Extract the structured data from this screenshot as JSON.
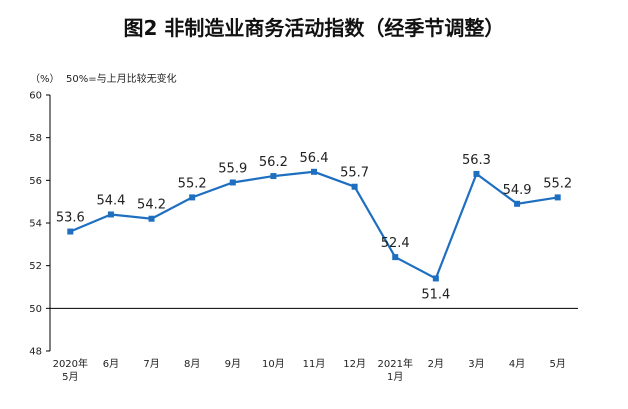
{
  "chart_data": {
    "type": "line",
    "title": "图2  非制造业商务活动指数（经季节调整）",
    "y_unit": "（%）",
    "reference_note": "50%=与上月比较无变化",
    "reference_line": 50,
    "categories": [
      [
        "2020年",
        "5月"
      ],
      [
        "6月"
      ],
      [
        "7月"
      ],
      [
        "8月"
      ],
      [
        "9月"
      ],
      [
        "10月"
      ],
      [
        "11月"
      ],
      [
        "12月"
      ],
      [
        "2021年",
        "1月"
      ],
      [
        "2月"
      ],
      [
        "3月"
      ],
      [
        "4月"
      ],
      [
        "5月"
      ]
    ],
    "values": [
      53.6,
      54.4,
      54.2,
      55.2,
      55.9,
      56.2,
      56.4,
      55.7,
      52.4,
      51.4,
      56.3,
      54.9,
      55.2
    ],
    "data_labels": [
      "53.6",
      "54.4",
      "54.2",
      "55.2",
      "55.9",
      "56.2",
      "56.4",
      "55.7",
      "52.4",
      "51.4",
      "56.3",
      "54.9",
      "55.2"
    ],
    "y_ticks": [
      "48",
      "50",
      "52",
      "54",
      "56",
      "58",
      "60"
    ],
    "ylim": [
      48,
      60
    ],
    "grid": false,
    "line_color": "#1f6fc1",
    "axis_color": "#000000"
  }
}
